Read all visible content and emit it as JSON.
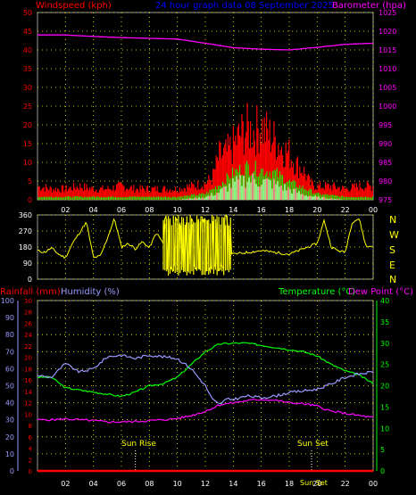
{
  "header": {
    "windspeed_label": "Windspeed (kph)",
    "title": "24 hour graph data  08 September 2025",
    "barometer_label": "Barometer (hpa)"
  },
  "panel2": {
    "compass_labels": [
      "N",
      "W",
      "S",
      "E",
      "N"
    ]
  },
  "panel3": {
    "rainfall_label": "Rainfall (mm)",
    "humidity_label": "Humidity (%)",
    "temperature_label": "Temperature (°C)",
    "dewpoint_label": "Dew Point (°C)",
    "sunrise_label": "Sun Rise",
    "sunset_label": "Sun Set",
    "sunset_time_label": "Sun Set"
  },
  "colors": {
    "windspeed": "#ff0000",
    "gust": "#ff0000",
    "avg_wind": "#00ff00",
    "wind_low": "#ffffff",
    "barometer": "#ff00ff",
    "direction": "#ffff00",
    "humidity": "#9999ff",
    "temperature": "#00ff00",
    "dewpoint": "#ff00ff",
    "rainfall": "#ff0000",
    "grid": "#ffff00",
    "title": "#0000ff"
  },
  "chart_data": [
    {
      "type": "area",
      "panel": "wind-barometer",
      "x_ticks": [
        "02",
        "04",
        "06",
        "08",
        "10",
        "12",
        "14",
        "16",
        "18",
        "20",
        "22",
        "00"
      ],
      "y_left": {
        "label": "Windspeed (kph)",
        "ylim": [
          0,
          50
        ],
        "ticks": [
          0,
          5,
          10,
          15,
          20,
          25,
          30,
          35,
          40,
          45,
          50
        ]
      },
      "y_right": {
        "label": "Barometer (hpa)",
        "ylim": [
          975,
          1025
        ],
        "ticks": [
          975,
          980,
          985,
          990,
          995,
          1000,
          1005,
          1010,
          1015,
          1020,
          1025
        ]
      },
      "grid": true,
      "series": [
        {
          "name": "Barometer",
          "hours": [
            0,
            2,
            4,
            6,
            8,
            10,
            12,
            14,
            16,
            18,
            20,
            22,
            24
          ],
          "values": [
            1019.0,
            1019.0,
            1018.6,
            1018.3,
            1018.1,
            1017.9,
            1016.8,
            1015.6,
            1015.2,
            1015.0,
            1015.7,
            1016.5,
            1016.8
          ]
        },
        {
          "name": "Gust",
          "hours": [
            0,
            1,
            2,
            3,
            4,
            5,
            6,
            7,
            8,
            9,
            10,
            11,
            12,
            12.5,
            13,
            13.5,
            14,
            14.5,
            15,
            15.5,
            16,
            16.5,
            17,
            17.5,
            18,
            18.5,
            19,
            19.5,
            20,
            21,
            22,
            23,
            24
          ],
          "values": [
            5,
            4,
            4,
            5,
            4,
            4,
            5,
            4,
            4,
            4,
            4,
            5,
            6,
            8,
            16,
            17,
            20,
            24,
            26,
            25,
            27,
            24,
            22,
            19,
            17,
            13,
            11,
            6,
            5,
            5,
            4,
            5,
            5
          ]
        },
        {
          "name": "Average",
          "hours": [
            0,
            2,
            4,
            6,
            8,
            10,
            12,
            13,
            14,
            15,
            16,
            17,
            18,
            19,
            20,
            22,
            24
          ],
          "values": [
            1,
            1,
            1,
            1,
            1,
            1,
            2,
            5,
            9,
            11,
            10,
            9,
            6,
            4,
            2,
            1,
            1
          ]
        },
        {
          "name": "Lull",
          "hours": [
            0,
            2,
            4,
            6,
            8,
            10,
            12,
            13,
            14,
            15,
            16,
            17,
            18,
            19,
            20,
            22,
            24
          ],
          "values": [
            0,
            0,
            0,
            0,
            0,
            0,
            1,
            3,
            6,
            8,
            7,
            6,
            4,
            2,
            1,
            0,
            0
          ]
        }
      ]
    },
    {
      "type": "line",
      "panel": "wind-direction",
      "x_ticks": [
        "02",
        "04",
        "06",
        "08",
        "10",
        "12",
        "14",
        "16",
        "18",
        "20",
        "22",
        "00"
      ],
      "y_left": {
        "ylim": [
          0,
          360
        ],
        "ticks": [
          0,
          90,
          180,
          270,
          360
        ]
      },
      "grid": true,
      "series": [
        {
          "name": "Direction",
          "hours": [
            0,
            0.5,
            1,
            1.5,
            2,
            2.5,
            3,
            3.5,
            4,
            4.5,
            5,
            5.5,
            6,
            6.5,
            7,
            7.5,
            8,
            8.5,
            9,
            9.5,
            10,
            10.5,
            11,
            11.5,
            12,
            12.5,
            13,
            13.5,
            14,
            15,
            16,
            17,
            18,
            19,
            20,
            20.5,
            21,
            21.5,
            22,
            22.5,
            23,
            23.5,
            24
          ],
          "values": [
            160,
            150,
            175,
            140,
            120,
            200,
            260,
            320,
            120,
            130,
            230,
            340,
            180,
            200,
            170,
            210,
            175,
            260,
            200,
            180,
            210,
            190,
            250,
            210,
            230,
            210,
            180,
            160,
            140,
            150,
            160,
            150,
            140,
            170,
            200,
            330,
            180,
            160,
            150,
            320,
            340,
            180,
            190
          ]
        }
      ]
    },
    {
      "type": "line",
      "panel": "temperature-humidity",
      "x_ticks": [
        "02",
        "04",
        "06",
        "08",
        "10",
        "12",
        "14",
        "16",
        "18",
        "20",
        "22",
        "00"
      ],
      "y_left_humidity": {
        "label": "Humidity (%)",
        "ylim": [
          0,
          100
        ],
        "ticks": [
          0,
          10,
          20,
          30,
          40,
          50,
          60,
          70,
          80,
          90,
          100
        ]
      },
      "y_left_rainfall": {
        "label": "Rainfall (mm)",
        "ylim": [
          0,
          30
        ],
        "ticks": [
          0,
          2,
          4,
          6,
          8,
          10,
          12,
          14,
          16,
          18,
          20,
          22,
          24,
          26,
          28,
          30
        ]
      },
      "y_right": {
        "label": "Temperature (°C)",
        "ylim": [
          0,
          40
        ],
        "ticks": [
          0,
          5,
          10,
          15,
          20,
          25,
          30,
          35,
          40
        ]
      },
      "grid": true,
      "annotations": [
        {
          "label": "Sun Rise",
          "hour": 7.0
        },
        {
          "label": "Sun Set",
          "hour": 19.6
        }
      ],
      "series": [
        {
          "name": "Temperature",
          "axis": "temp",
          "hours": [
            0,
            1,
            2,
            3,
            4,
            5,
            6,
            7,
            8,
            9,
            10,
            11,
            12,
            13,
            14,
            15,
            16,
            17,
            18,
            19,
            20,
            21,
            22,
            23,
            24
          ],
          "values": [
            22.0,
            22.0,
            19.5,
            19.0,
            18.5,
            18.0,
            17.5,
            18.5,
            20.0,
            20.5,
            22.0,
            25.0,
            28.0,
            29.8,
            30.0,
            30.0,
            29.5,
            29.0,
            28.5,
            28.0,
            27.0,
            25.0,
            23.5,
            22.5,
            20.5
          ]
        },
        {
          "name": "Dew Point",
          "axis": "temp",
          "hours": [
            0,
            1,
            2,
            3,
            4,
            5,
            6,
            7,
            8,
            9,
            10,
            11,
            12,
            13,
            14,
            15,
            16,
            17,
            18,
            19,
            20,
            21,
            22,
            23,
            24
          ],
          "values": [
            12.0,
            12.0,
            12.2,
            12.0,
            11.8,
            11.5,
            11.5,
            11.6,
            11.8,
            12.0,
            12.3,
            13.0,
            14.0,
            15.5,
            16.0,
            16.5,
            16.8,
            16.6,
            16.0,
            15.8,
            15.2,
            14.0,
            13.5,
            13.0,
            12.5
          ]
        },
        {
          "name": "Humidity",
          "axis": "humidity",
          "hours": [
            0,
            1,
            2,
            3,
            4,
            5,
            6,
            7,
            8,
            9,
            10,
            11,
            12,
            12.5,
            13,
            13.5,
            14,
            15,
            16,
            17,
            18,
            19,
            20,
            21,
            22,
            23,
            24
          ],
          "values": [
            56,
            55,
            63,
            58,
            60,
            67,
            68,
            66,
            68,
            67,
            66,
            60,
            50,
            42,
            39,
            42,
            42,
            44,
            43,
            44,
            46,
            47,
            48,
            51,
            55,
            57,
            58
          ]
        },
        {
          "name": "Rainfall",
          "axis": "rainfall",
          "hours": [
            0,
            24
          ],
          "values": [
            0,
            0
          ]
        }
      ]
    }
  ]
}
